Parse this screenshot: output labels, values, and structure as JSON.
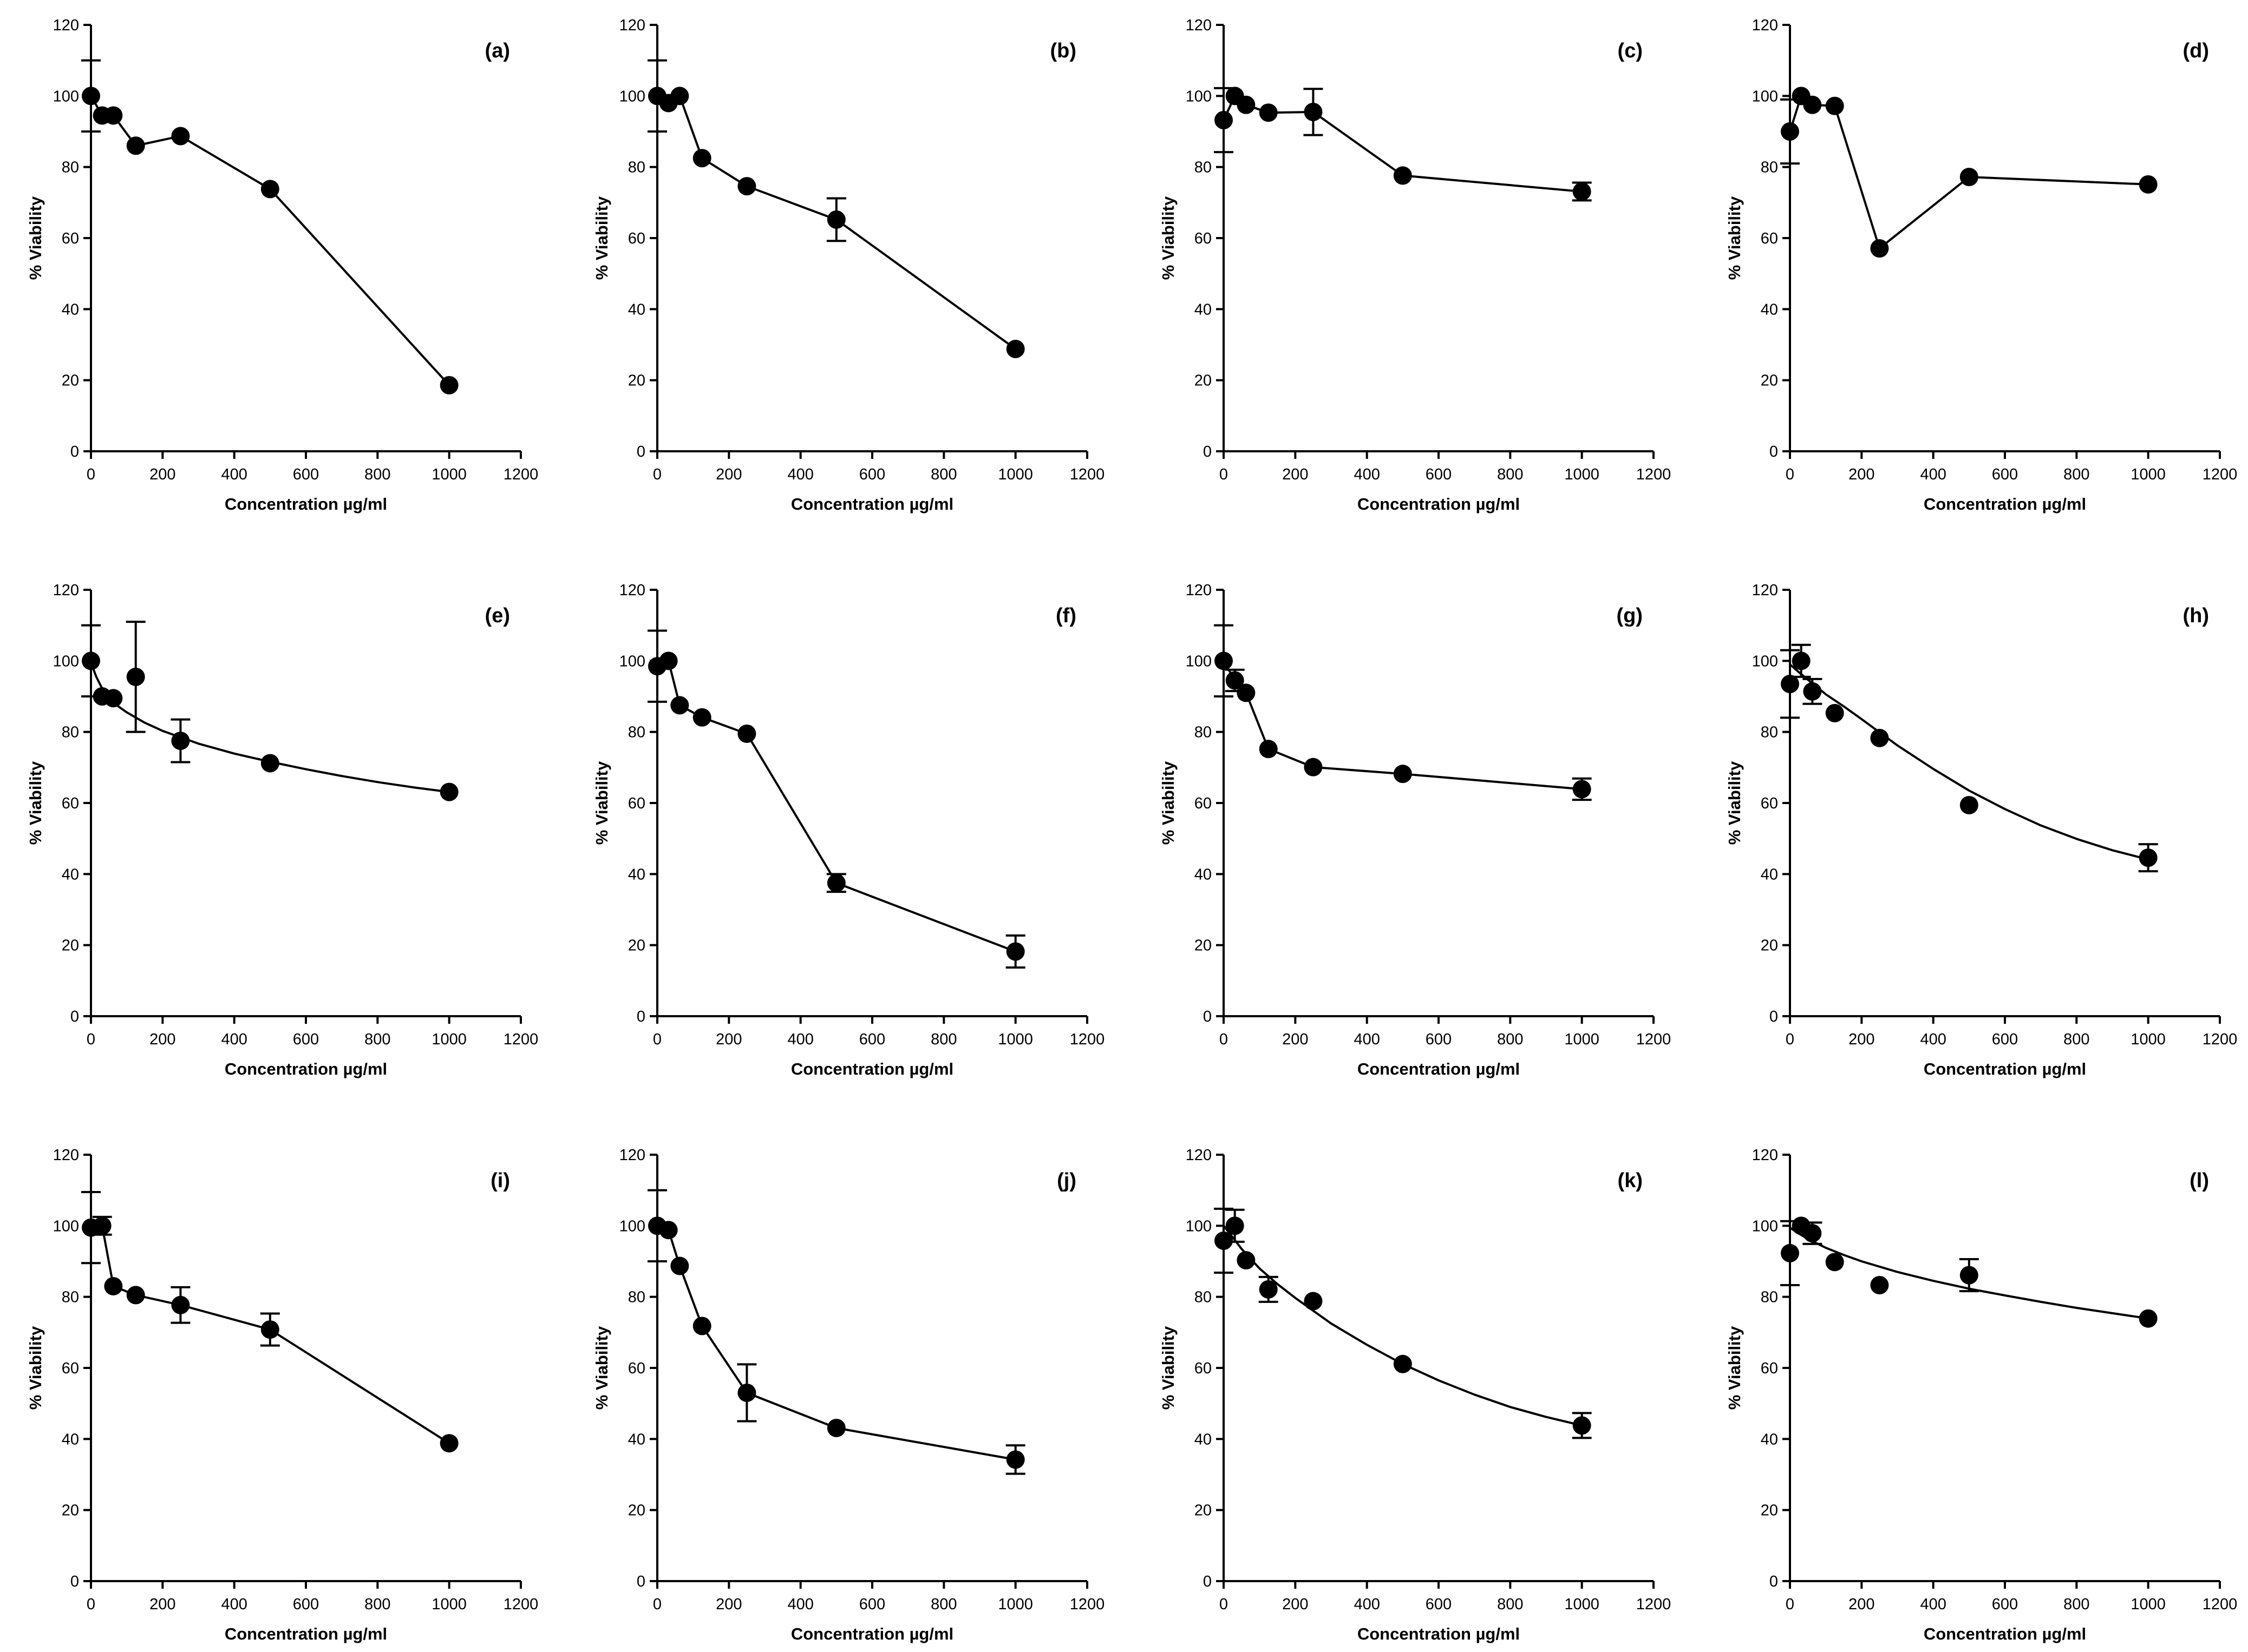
{
  "figure": {
    "name": "Cell viability panels (a)–(l)"
  },
  "style": {
    "ink": "#000000",
    "background": "#ffffff"
  },
  "chart_data": [
    {
      "panel": "(a)",
      "type": "line",
      "xlabel": "Concentration µg/ml",
      "ylabel": "% Viability",
      "xlim": [
        0,
        1200
      ],
      "ylim": [
        0,
        120
      ],
      "xticks": [
        0,
        200,
        400,
        600,
        800,
        1000,
        1200
      ],
      "yticks": [
        0,
        20,
        40,
        60,
        80,
        100,
        120
      ],
      "x": [
        0,
        31.25,
        62.5,
        125,
        250,
        500,
        1000
      ],
      "y": [
        100,
        94.5,
        94.5,
        86,
        88.7,
        73.8,
        18.6
      ],
      "err": [
        10,
        0,
        0,
        0,
        0,
        0,
        0
      ],
      "curve": "segments"
    },
    {
      "panel": "(b)",
      "type": "line",
      "xlabel": "Concentration µg/ml",
      "ylabel": "% Viability",
      "xlim": [
        0,
        1200
      ],
      "ylim": [
        0,
        120
      ],
      "xticks": [
        0,
        200,
        400,
        600,
        800,
        1000,
        1200
      ],
      "yticks": [
        0,
        20,
        40,
        60,
        80,
        100,
        120
      ],
      "x": [
        0,
        31.25,
        62.5,
        125,
        250,
        500,
        1000
      ],
      "y": [
        100,
        98,
        100,
        82.5,
        74.6,
        65.2,
        28.8
      ],
      "err": [
        10,
        0,
        0,
        0,
        0,
        6,
        0
      ],
      "curve": "segments"
    },
    {
      "panel": "(c)",
      "type": "line",
      "xlabel": "Concentration µg/ml",
      "ylabel": "% Viability",
      "xlim": [
        0,
        1200
      ],
      "ylim": [
        0,
        120
      ],
      "xticks": [
        0,
        200,
        400,
        600,
        800,
        1000,
        1200
      ],
      "yticks": [
        0,
        20,
        40,
        60,
        80,
        100,
        120
      ],
      "x": [
        0,
        31.25,
        62.5,
        125,
        250,
        500,
        1000
      ],
      "y": [
        93.2,
        100,
        97.5,
        95.3,
        95.5,
        77.6,
        73.1
      ],
      "err": [
        9,
        0,
        0,
        0,
        6.5,
        0,
        2.5
      ],
      "curve": "segments"
    },
    {
      "panel": "(d)",
      "type": "line",
      "xlabel": "Concentration µg/ml",
      "ylabel": "% Viability",
      "xlim": [
        0,
        1200
      ],
      "ylim": [
        0,
        120
      ],
      "xticks": [
        0,
        200,
        400,
        600,
        800,
        1000,
        1200
      ],
      "yticks": [
        0,
        20,
        40,
        60,
        80,
        100,
        120
      ],
      "x": [
        0,
        31.25,
        62.5,
        125,
        250,
        500,
        1000
      ],
      "y": [
        90,
        100,
        97.5,
        97.2,
        57.1,
        77.2,
        75.1
      ],
      "err": [
        9,
        0,
        0,
        0,
        0,
        0,
        0
      ],
      "curve": "segments"
    },
    {
      "panel": "(e)",
      "type": "line",
      "xlabel": "Concentration µg/ml",
      "ylabel": "% Viability",
      "xlim": [
        0,
        1200
      ],
      "ylim": [
        0,
        120
      ],
      "xticks": [
        0,
        200,
        400,
        600,
        800,
        1000,
        1200
      ],
      "yticks": [
        0,
        20,
        40,
        60,
        80,
        100,
        120
      ],
      "x": [
        0,
        31.25,
        62.5,
        125,
        250,
        500,
        1000
      ],
      "y": [
        100,
        90,
        89.5,
        95.5,
        77.5,
        71.2,
        63.1
      ],
      "err": [
        10,
        0,
        0,
        15.5,
        6,
        0,
        0
      ],
      "curve": "fit",
      "fit_x": [
        0,
        15,
        30,
        50,
        75,
        100,
        150,
        200,
        300,
        400,
        500,
        600,
        700,
        800,
        900,
        1000
      ],
      "fit_y": [
        99.5,
        95.5,
        92.5,
        89.6,
        87.3,
        85.5,
        82.6,
        80.3,
        76.7,
        73.9,
        71.6,
        69.5,
        67.6,
        65.9,
        64.4,
        63.1
      ]
    },
    {
      "panel": "(f)",
      "type": "line",
      "xlabel": "Concentration µg/ml",
      "ylabel": "% Viability",
      "xlim": [
        0,
        1200
      ],
      "ylim": [
        0,
        120
      ],
      "xticks": [
        0,
        200,
        400,
        600,
        800,
        1000,
        1200
      ],
      "yticks": [
        0,
        20,
        40,
        60,
        80,
        100,
        120
      ],
      "x": [
        0,
        31.25,
        62.5,
        125,
        250,
        500,
        1000
      ],
      "y": [
        98.5,
        100,
        87.5,
        84.1,
        79.5,
        37.5,
        18.2
      ],
      "err": [
        10,
        0,
        0,
        0,
        0,
        2.5,
        4.5
      ],
      "curve": "segments"
    },
    {
      "panel": "(g)",
      "type": "line",
      "xlabel": "Concentration µg/ml",
      "ylabel": "% Viability",
      "xlim": [
        0,
        1200
      ],
      "ylim": [
        0,
        120
      ],
      "xticks": [
        0,
        200,
        400,
        600,
        800,
        1000,
        1200
      ],
      "yticks": [
        0,
        20,
        40,
        60,
        80,
        100,
        120
      ],
      "x": [
        0,
        31.25,
        62.5,
        125,
        250,
        500,
        1000
      ],
      "y": [
        100,
        94.5,
        91,
        75.2,
        70.1,
        68.2,
        63.9
      ],
      "err": [
        10,
        3,
        0,
        0,
        0,
        0,
        3
      ],
      "curve": "segments"
    },
    {
      "panel": "(h)",
      "type": "line",
      "xlabel": "Concentration µg/ml",
      "ylabel": "% Viability",
      "xlim": [
        0,
        1200
      ],
      "ylim": [
        0,
        120
      ],
      "xticks": [
        0,
        200,
        400,
        600,
        800,
        1000,
        1200
      ],
      "yticks": [
        0,
        20,
        40,
        60,
        80,
        100,
        120
      ],
      "x": [
        0,
        31.25,
        62.5,
        125,
        250,
        500,
        1000
      ],
      "y": [
        93.5,
        100,
        91.4,
        85.3,
        78.3,
        59.4,
        44.6
      ],
      "err": [
        9.5,
        4.5,
        3.5,
        0,
        0,
        0,
        3.8
      ],
      "curve": "fit",
      "fit_x": [
        0,
        25,
        50,
        100,
        150,
        200,
        300,
        400,
        500,
        600,
        700,
        800,
        900,
        1000
      ],
      "fit_y": [
        99,
        96.8,
        94.7,
        90.6,
        87.2,
        83.6,
        76.2,
        69.6,
        63.5,
        58.3,
        53.7,
        49.9,
        46.7,
        44.1
      ]
    },
    {
      "panel": "(i)",
      "type": "line",
      "xlabel": "Concentration µg/ml",
      "ylabel": "% Viability",
      "xlim": [
        0,
        1200
      ],
      "ylim": [
        0,
        120
      ],
      "xticks": [
        0,
        200,
        400,
        600,
        800,
        1000,
        1200
      ],
      "yticks": [
        0,
        20,
        40,
        60,
        80,
        100,
        120
      ],
      "x": [
        0,
        31.25,
        62.5,
        125,
        250,
        500,
        1000
      ],
      "y": [
        99.5,
        100,
        83,
        80.5,
        77.7,
        70.8,
        38.8
      ],
      "err": [
        10,
        2.5,
        0,
        0,
        5,
        4.5,
        0
      ],
      "curve": "segments"
    },
    {
      "panel": "(j)",
      "type": "line",
      "xlabel": "Concentration µg/ml",
      "ylabel": "% Viability",
      "xlim": [
        0,
        1200
      ],
      "ylim": [
        0,
        120
      ],
      "xticks": [
        0,
        200,
        400,
        600,
        800,
        1000,
        1200
      ],
      "yticks": [
        0,
        20,
        40,
        60,
        80,
        100,
        120
      ],
      "x": [
        0,
        31.25,
        62.5,
        125,
        250,
        500,
        1000
      ],
      "y": [
        100,
        98.8,
        88.7,
        71.8,
        53,
        43.1,
        34.2
      ],
      "err": [
        10,
        0,
        0,
        0,
        8,
        0,
        4
      ],
      "curve": "segments"
    },
    {
      "panel": "(k)",
      "type": "line",
      "xlabel": "Concentration µg/ml",
      "ylabel": "% Viability",
      "xlim": [
        0,
        1200
      ],
      "ylim": [
        0,
        120
      ],
      "xticks": [
        0,
        200,
        400,
        600,
        800,
        1000,
        1200
      ],
      "yticks": [
        0,
        20,
        40,
        60,
        80,
        100,
        120
      ],
      "x": [
        0,
        31.25,
        62.5,
        125,
        250,
        500,
        1000
      ],
      "y": [
        95.8,
        100,
        90.3,
        82.1,
        78.8,
        61.1,
        43.8
      ],
      "err": [
        9,
        4.5,
        0,
        3.5,
        0,
        0,
        3.5
      ],
      "curve": "fit",
      "fit_x": [
        0,
        25,
        50,
        100,
        150,
        200,
        300,
        400,
        500,
        600,
        700,
        800,
        900,
        1000
      ],
      "fit_y": [
        100,
        96.8,
        93.5,
        88,
        83.6,
        79.7,
        72.5,
        66.5,
        61.1,
        56.5,
        52.5,
        49,
        46.2,
        43.8
      ]
    },
    {
      "panel": "(l)",
      "type": "line",
      "xlabel": "Concentration µg/ml",
      "ylabel": "% Viability",
      "xlim": [
        0,
        1200
      ],
      "ylim": [
        0,
        120
      ],
      "xticks": [
        0,
        200,
        400,
        600,
        800,
        1000,
        1200
      ],
      "yticks": [
        0,
        20,
        40,
        60,
        80,
        100,
        120
      ],
      "x": [
        0,
        31.25,
        62.5,
        125,
        250,
        500,
        1000
      ],
      "y": [
        92.3,
        100,
        97.9,
        89.8,
        83.3,
        86.1,
        73.9
      ],
      "err": [
        9,
        0,
        3,
        0,
        0,
        4.5,
        0
      ],
      "curve": "fit",
      "fit_x": [
        0,
        25,
        50,
        100,
        150,
        200,
        300,
        400,
        500,
        600,
        700,
        800,
        900,
        1000
      ],
      "fit_y": [
        99.5,
        97.8,
        96.3,
        93.8,
        91.8,
        90,
        87,
        84.5,
        82.3,
        80.4,
        78.6,
        76.9,
        75.4,
        73.9
      ]
    }
  ]
}
